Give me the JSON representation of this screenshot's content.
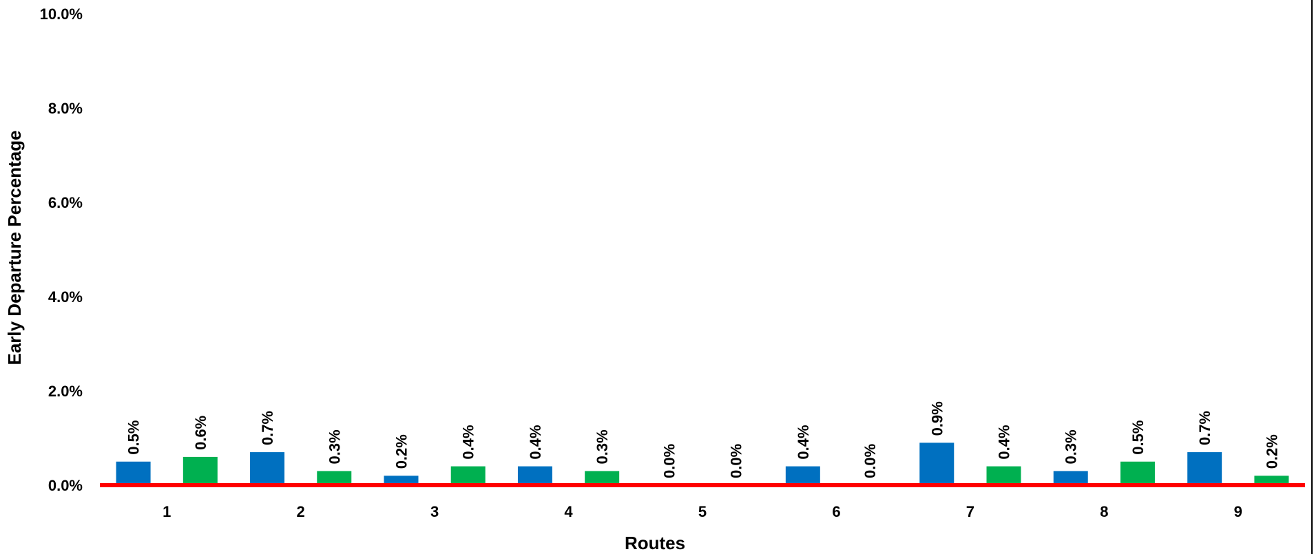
{
  "chart_data": {
    "type": "bar",
    "title": "",
    "xlabel": "Routes",
    "ylabel": "Early Departure Percentage",
    "categories": [
      "1",
      "2",
      "3",
      "4",
      "5",
      "6",
      "7",
      "8",
      "9"
    ],
    "series": [
      {
        "values": [
          0.5,
          0.7,
          0.2,
          0.4,
          0.0,
          0.4,
          0.9,
          0.3,
          0.7
        ],
        "color": "#0070C0"
      },
      {
        "values": [
          0.6,
          0.3,
          0.4,
          0.3,
          0.0,
          0.0,
          0.4,
          0.5,
          0.2
        ],
        "color": "#00B050"
      }
    ],
    "value_unit": "%",
    "ylim": [
      0,
      10
    ],
    "yticks": [
      0,
      2,
      4,
      6,
      8,
      10
    ],
    "ytick_labels": [
      "0.0%",
      "2.0%",
      "4.0%",
      "6.0%",
      "8.0%",
      "10.0%"
    ],
    "grid": false,
    "legend": "none",
    "baseline_color": "#FF0000",
    "frame_color": "#000000"
  }
}
